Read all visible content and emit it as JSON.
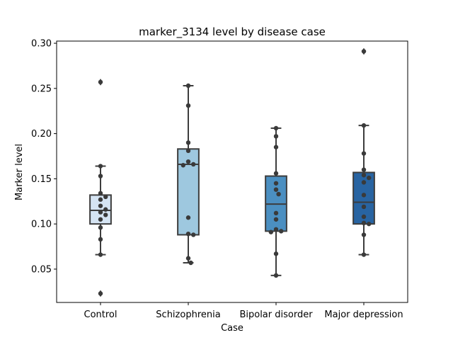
{
  "chart_data": {
    "type": "box",
    "title": "marker_3134 level by disease case",
    "xlabel": "Case",
    "ylabel": "Marker level",
    "ylim": [
      0.0131,
      0.3024
    ],
    "yticks": [
      0.05,
      0.1,
      0.15,
      0.2,
      0.25,
      0.3
    ],
    "ytick_labels": [
      "0.05",
      "0.10",
      "0.15",
      "0.20",
      "0.25",
      "0.30"
    ],
    "categories": [
      "Control",
      "Schizophrenia",
      "Bipolar disorder",
      "Major depression"
    ],
    "colors": [
      "#d5e4f3",
      "#9ec8df",
      "#4b8fc1",
      "#2864a2"
    ],
    "boxes": [
      {
        "category": "Control",
        "q1": 0.1,
        "median": 0.115,
        "q3": 0.132,
        "whisker_low": 0.066,
        "whisker_high": 0.164,
        "outliers": [
          0.257,
          0.023
        ]
      },
      {
        "category": "Schizophrenia",
        "q1": 0.088,
        "median": 0.166,
        "q3": 0.183,
        "whisker_low": 0.057,
        "whisker_high": 0.253,
        "outliers": []
      },
      {
        "category": "Bipolar disorder",
        "q1": 0.092,
        "median": 0.122,
        "q3": 0.153,
        "whisker_low": 0.043,
        "whisker_high": 0.206,
        "outliers": []
      },
      {
        "category": "Major depression",
        "q1": 0.1,
        "median": 0.124,
        "q3": 0.157,
        "whisker_low": 0.066,
        "whisker_high": 0.209,
        "outliers": [
          0.291
        ]
      }
    ],
    "points": [
      [
        0.257,
        0.164,
        0.153,
        0.134,
        0.13,
        0.127,
        0.12,
        0.116,
        0.113,
        0.11,
        0.105,
        0.096,
        0.083,
        0.066,
        0.023
      ],
      [
        0.253,
        0.231,
        0.19,
        0.181,
        0.169,
        0.166,
        0.165,
        0.107,
        0.089,
        0.088,
        0.062,
        0.057
      ],
      [
        0.206,
        0.197,
        0.185,
        0.156,
        0.145,
        0.138,
        0.133,
        0.112,
        0.105,
        0.094,
        0.092,
        0.091,
        0.067,
        0.043
      ],
      [
        0.291,
        0.209,
        0.178,
        0.16,
        0.154,
        0.151,
        0.146,
        0.132,
        0.119,
        0.108,
        0.101,
        0.1,
        0.088,
        0.066
      ]
    ]
  }
}
